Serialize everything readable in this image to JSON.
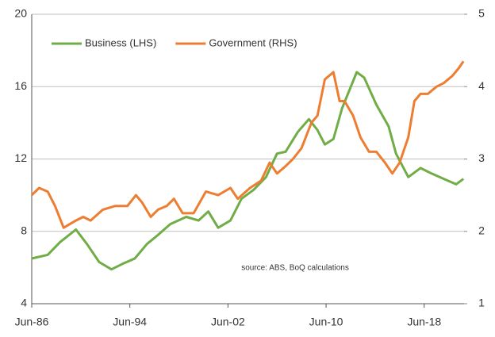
{
  "chart_data": {
    "type": "line",
    "annotations": [
      "source:  ABS, BoQ calculations"
    ],
    "xlim": [
      1986.5,
      2021.75
    ],
    "xticks": [
      {
        "value": 1986.5,
        "label": "Jun-86"
      },
      {
        "value": 1994.5,
        "label": "Jun-94"
      },
      {
        "value": 2002.5,
        "label": "Jun-02"
      },
      {
        "value": 2010.5,
        "label": "Jun-10"
      },
      {
        "value": 2018.5,
        "label": "Jun-18"
      }
    ],
    "ylim": [
      4,
      20
    ],
    "yticks": [
      4,
      8,
      12,
      16,
      20
    ],
    "y2lim": [
      1,
      5
    ],
    "y2ticks": [
      1,
      2,
      3,
      4,
      5
    ],
    "grid": true,
    "legend": "upper left",
    "series": [
      {
        "name": "Business (LHS)",
        "color": "#70ad47",
        "axis": "y",
        "x": [
          1986.5,
          1987.8,
          1988.8,
          1990.1,
          1991.0,
          1992.0,
          1993.0,
          1993.9,
          1994.9,
          1995.9,
          1996.8,
          1997.8,
          1999.1,
          2000.1,
          2000.9,
          2001.7,
          2002.7,
          2003.6,
          2004.6,
          2005.6,
          2006.5,
          2007.2,
          2008.2,
          2009.1,
          2009.8,
          2010.4,
          2011.1,
          2011.8,
          2013.0,
          2013.6,
          2014.6,
          2015.6,
          2016.2,
          2017.2,
          2018.2,
          2019.1,
          2020.1,
          2021.1,
          2021.7
        ],
        "values": [
          6.5,
          6.7,
          7.4,
          8.1,
          7.3,
          6.3,
          5.9,
          6.2,
          6.5,
          7.3,
          7.8,
          8.4,
          8.8,
          8.6,
          9.1,
          8.2,
          8.6,
          9.8,
          10.3,
          11.0,
          12.3,
          12.4,
          13.5,
          14.2,
          13.6,
          12.8,
          13.1,
          14.8,
          16.8,
          16.5,
          15.0,
          13.8,
          12.3,
          11.0,
          11.5,
          11.2,
          10.9,
          10.6,
          10.9
        ]
      },
      {
        "name": "Government (RHS)",
        "color": "#ed7d31",
        "axis": "y2",
        "x": [
          1986.5,
          1987.1,
          1987.8,
          1988.4,
          1989.1,
          1990.1,
          1990.7,
          1991.3,
          1992.3,
          1993.3,
          1994.3,
          1995.0,
          1995.5,
          1996.2,
          1996.8,
          1997.5,
          1998.1,
          1998.8,
          1999.7,
          2000.7,
          2001.7,
          2002.7,
          2003.3,
          2004.3,
          2005.2,
          2005.9,
          2006.5,
          2007.2,
          2007.8,
          2008.5,
          2009.3,
          2009.8,
          2010.4,
          2011.1,
          2011.6,
          2012.0,
          2012.7,
          2013.3,
          2014.0,
          2014.6,
          2015.3,
          2015.9,
          2016.5,
          2017.2,
          2017.7,
          2018.2,
          2018.8,
          2019.5,
          2020.1,
          2020.8,
          2021.3,
          2021.7
        ],
        "values": [
          2.5,
          2.6,
          2.55,
          2.35,
          2.05,
          2.15,
          2.2,
          2.15,
          2.3,
          2.35,
          2.35,
          2.5,
          2.4,
          2.2,
          2.3,
          2.35,
          2.45,
          2.25,
          2.25,
          2.55,
          2.5,
          2.6,
          2.45,
          2.6,
          2.7,
          2.95,
          2.8,
          2.9,
          3.0,
          3.15,
          3.5,
          3.6,
          4.1,
          4.2,
          3.8,
          3.8,
          3.6,
          3.3,
          3.1,
          3.1,
          2.95,
          2.8,
          2.95,
          3.3,
          3.8,
          3.9,
          3.9,
          4.0,
          4.05,
          4.15,
          4.25,
          4.35
        ]
      }
    ]
  }
}
